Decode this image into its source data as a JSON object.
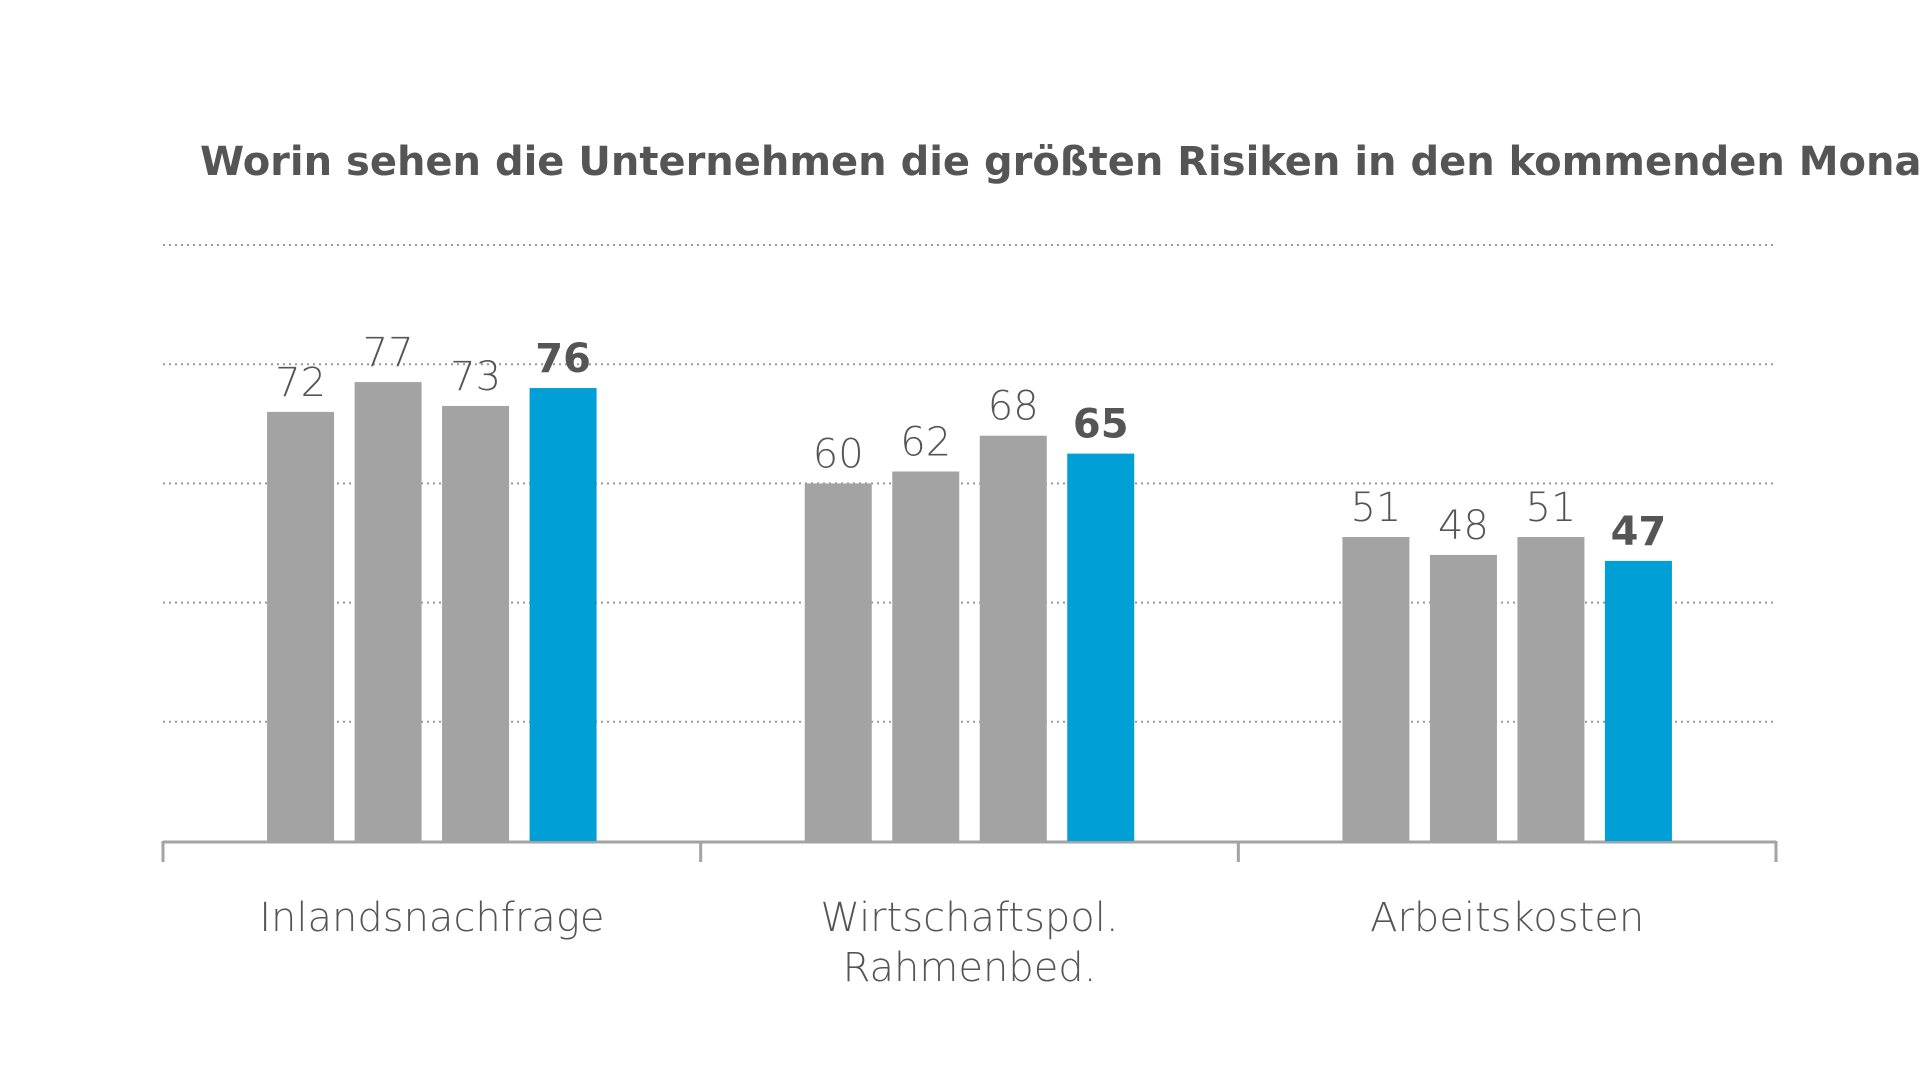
{
  "chart_data": {
    "type": "bar",
    "title": "Worin sehen die Unternehmen die größten Risiken in den kommenden Monaten?",
    "categories": [
      "Inlandsnachfrage",
      "Wirtschaftspol.\nRahmenbed.",
      "Arbeitskosten"
    ],
    "series": [
      {
        "color": "#a3a3a3",
        "values": [
          72,
          60,
          51
        ]
      },
      {
        "color": "#a3a3a3",
        "values": [
          77,
          62,
          48
        ]
      },
      {
        "color": "#a3a3a3",
        "values": [
          73,
          68,
          51
        ]
      },
      {
        "color": "#009fd6",
        "values": [
          76,
          65,
          47
        ],
        "label_bold": true
      }
    ],
    "ylim": [
      0,
      100
    ],
    "yticks": [
      20,
      40,
      60,
      80,
      100
    ],
    "grid": true
  }
}
